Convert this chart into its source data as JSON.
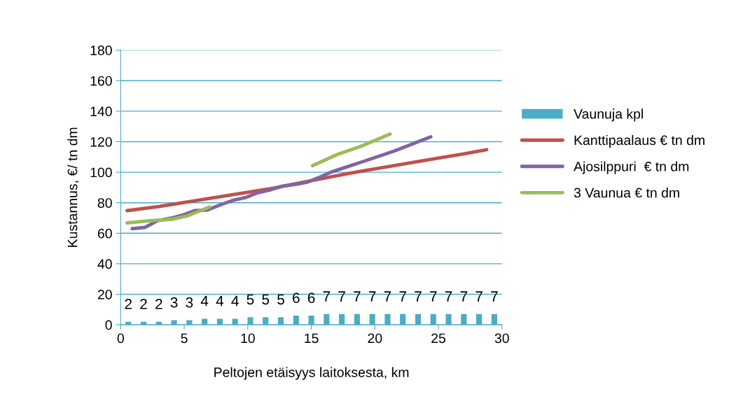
{
  "chart_data": {
    "type": "line",
    "xlabel": "Peltojen etäisyys laitoksesta, km",
    "ylabel": "Kustannus, €/ tn dm",
    "xlim": [
      0,
      30
    ],
    "xticks": [
      0,
      5,
      10,
      15,
      20,
      25,
      30
    ],
    "ylim": [
      0,
      180
    ],
    "yticks": [
      0,
      20,
      40,
      60,
      80,
      100,
      120,
      140,
      160,
      180
    ],
    "grid": "y",
    "legend": "right",
    "marker": "none",
    "line_style": "solid",
    "series": [
      {
        "name": "Vaunuja kpl",
        "type": "bar",
        "color": "#4bacc6",
        "data_labels": true,
        "x": [
          0.6,
          1.8,
          3.0,
          4.2,
          5.4,
          6.6,
          7.8,
          9.0,
          10.2,
          11.4,
          12.6,
          13.8,
          15.0,
          16.2,
          17.4,
          18.6,
          19.8,
          21.0,
          22.2,
          23.4,
          24.6,
          25.8,
          27.0,
          28.2,
          29.4
        ],
        "values": [
          2,
          2,
          2,
          3,
          3,
          4,
          4,
          4,
          5,
          5,
          5,
          6,
          6,
          7,
          7,
          7,
          7,
          7,
          7,
          7,
          7,
          7,
          7,
          7,
          7
        ]
      },
      {
        "name": "Kanttipaalaus € tn dm",
        "color": "#c0504d",
        "x": [
          0.5,
          3,
          6,
          9,
          12,
          15,
          18,
          19.5,
          22,
          25,
          27,
          28.8
        ],
        "values": [
          74.8,
          77.5,
          81.5,
          85.5,
          89.5,
          94.5,
          99.3,
          101.5,
          105,
          109.3,
          112,
          114.8
        ]
      },
      {
        "name": "Ajosilppuri  € tn dm",
        "color": "#8064a2",
        "x": [
          0.9,
          1.9,
          2.9,
          4.1,
          5.0,
          5.8,
          6.8,
          7.8,
          8.8,
          9.8,
          10.7,
          11.7,
          12.7,
          13.7,
          14.7,
          15.5,
          16.6,
          19.0,
          21.5,
          24.4
        ],
        "values": [
          63.0,
          63.8,
          68.2,
          70.2,
          72.3,
          74.8,
          75.2,
          78.5,
          81.5,
          83.3,
          86.3,
          88.3,
          90.8,
          92.0,
          93.5,
          96.2,
          100.2,
          106.8,
          113.8,
          123.2
        ]
      },
      {
        "name": "3 Vaunua € tn dm",
        "color": "#9bbb59",
        "x": [
          0.5,
          2.3,
          4.1,
          5.2,
          7.0,
          11.0,
          15.1,
          17.0,
          19.0,
          21.2
        ],
        "values": [
          66.8,
          68.2,
          69.2,
          71.3,
          77.2,
          null,
          104.3,
          111.5,
          117.3,
          125.0
        ]
      }
    ]
  }
}
